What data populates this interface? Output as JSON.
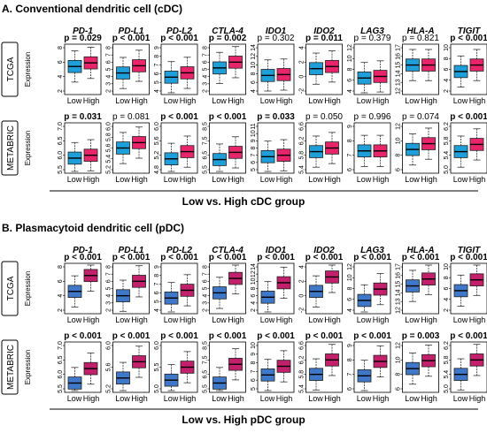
{
  "genes": [
    "PD-1",
    "PD-L1",
    "PD-L2",
    "CTLA-4",
    "IDO1",
    "IDO2",
    "LAG3",
    "HLA-A",
    "TIGIT"
  ],
  "x_categories": [
    "Low",
    "High"
  ],
  "y_label": "Expression",
  "colors": {
    "cdc_low": "#1f9fd9",
    "cdc_high": "#e8246b",
    "pdc_low": "#3f78c9",
    "pdc_high": "#c2206b",
    "cdc_low_alt": "#2a7fd0"
  },
  "panels": [
    {
      "title": "A. Conventional dendritic cell (cDC)",
      "group_caption": "Low vs. High cDC group",
      "scheme": "cdc",
      "rows": [
        {
          "label": "TCGA",
          "pvalues": [
            "p = 0.029",
            "p < 0.001",
            "p < 0.001",
            "p = 0.002",
            "p = 0.302",
            "p = 0.011",
            "p = 0.379",
            "p = 0.821",
            "p < 0.001"
          ],
          "significant": [
            true,
            true,
            true,
            true,
            false,
            true,
            false,
            false,
            true
          ],
          "tick_labels": [
            [
              "2",
              "4",
              "6",
              "8"
            ],
            [
              "2",
              "3",
              "4",
              "5",
              "6",
              "7",
              "8"
            ],
            [
              "4",
              "5",
              "6",
              "7",
              "8",
              "9"
            ],
            [
              "2",
              "3",
              "4",
              "5",
              "6",
              "7",
              "8"
            ],
            [
              "4",
              "6",
              "8",
              "10",
              "12",
              "14"
            ],
            [
              "-2",
              "0",
              "2",
              "4"
            ],
            [
              "4",
              "6",
              "8",
              "10",
              "12"
            ],
            [
              "12",
              "13",
              "14",
              "15",
              "16",
              "17"
            ],
            [
              "2",
              "4",
              "6",
              "8",
              "10"
            ]
          ]
        },
        {
          "label": "METABRIC",
          "pvalues": [
            "p = 0.031",
            "p = 0.081",
            "p < 0.001",
            "p < 0.001",
            "p = 0.033",
            "p = 0.050",
            "p = 0.996",
            "p = 0.074",
            "p < 0.001"
          ],
          "significant": [
            true,
            false,
            true,
            true,
            true,
            false,
            false,
            false,
            true
          ],
          "tick_labels": [
            [
              "5.5",
              "6.0",
              "6.5",
              "7.0"
            ],
            [
              "5.2",
              "5.4",
              "5.6",
              "5.8",
              "6.0"
            ],
            [
              "4.8",
              "5.2",
              "5.6",
              "6.0"
            ],
            [
              "5.5",
              "6.5",
              "7.5",
              "8.5"
            ],
            [
              "5",
              "6",
              "7",
              "8",
              "9",
              "10",
              "11"
            ],
            [
              "5.4",
              "5.8",
              "6.2",
              "6.6"
            ],
            [
              "6",
              "7",
              "8",
              "9"
            ],
            [
              "6",
              "8",
              "10",
              "12"
            ],
            [
              "5.0",
              "5.4",
              "5.8",
              "6.2"
            ]
          ]
        }
      ]
    },
    {
      "title": "B. Plasmacytoid dendritic cell (pDC)",
      "group_caption": "Low vs. High pDC group",
      "scheme": "pdc",
      "rows": [
        {
          "label": "TCGA",
          "pvalues": [
            "p < 0.001",
            "p < 0.001",
            "p < 0.001",
            "p < 0.001",
            "p < 0.001",
            "p < 0.001",
            "p < 0.001",
            "p < 0.001",
            "p < 0.001"
          ],
          "significant": [
            true,
            true,
            true,
            true,
            true,
            true,
            true,
            true,
            true
          ],
          "tick_labels": [
            [
              "2",
              "4",
              "6",
              "8"
            ],
            [
              "2",
              "3",
              "4",
              "5",
              "6",
              "7",
              "8"
            ],
            [
              "4",
              "5",
              "6",
              "7",
              "8",
              "9"
            ],
            [
              "2",
              "3",
              "4",
              "5",
              "6",
              "7",
              "8"
            ],
            [
              "2",
              "4",
              "6",
              "8",
              "10",
              "12",
              "14"
            ],
            [
              "-2",
              "0",
              "2",
              "4"
            ],
            [
              "4",
              "6",
              "8",
              "10",
              "12"
            ],
            [
              "12",
              "13",
              "14",
              "15",
              "16",
              "17"
            ],
            [
              "2",
              "4",
              "6",
              "8",
              "10"
            ]
          ]
        },
        {
          "label": "METABRIC",
          "pvalues": [
            "p < 0.001",
            "p < 0.001",
            "p < 0.001",
            "p < 0.001",
            "p < 0.001",
            "p < 0.001",
            "p < 0.001",
            "p = 0.003",
            "p < 0.001"
          ],
          "significant": [
            true,
            true,
            true,
            true,
            true,
            true,
            true,
            true,
            true
          ],
          "tick_labels": [
            [
              "5.5",
              "6.0",
              "6.5",
              "7.0"
            ],
            [
              "5.2",
              "5.6",
              "6.0"
            ],
            [
              "5.0",
              "5.5",
              "6.0"
            ],
            [
              "5.5",
              "6.5",
              "7.5",
              "8.5"
            ],
            [
              "5",
              "6",
              "7",
              "8",
              "9",
              "10"
            ],
            [
              "5.4",
              "5.8",
              "6.2",
              "6.6"
            ],
            [
              "6",
              "7",
              "8",
              "9"
            ],
            [
              "6",
              "8",
              "10",
              "12"
            ],
            [
              "5.0",
              "5.4",
              "5.8",
              "6.2"
            ]
          ]
        }
      ]
    }
  ],
  "chart_data": [
    {
      "type": "box",
      "title": "A. Conventional dendritic cell (cDC)",
      "dataset": "TCGA",
      "xlabel": "Low vs. High cDC group",
      "ylabel": "Expression",
      "categories": [
        "Low",
        "High"
      ],
      "series": [
        {
          "name": "Low",
          "medians": [
            5.4,
            4.5,
            5.6,
            5.2,
            7.6,
            1.1,
            6.4,
            15.0,
            5.6
          ]
        },
        {
          "name": "High",
          "medians": [
            5.9,
            5.5,
            6.1,
            6.0,
            7.8,
            1.4,
            6.7,
            15.0,
            6.8
          ]
        }
      ]
    },
    {
      "type": "box",
      "title": "A. Conventional dendritic cell (cDC)",
      "dataset": "METABRIC",
      "xlabel": "Low vs. High cDC group",
      "ylabel": "Expression",
      "categories": [
        "Low",
        "High"
      ],
      "series": [
        {
          "name": "Low",
          "medians": [
            5.9,
            5.6,
            5.1,
            6.2,
            6.8,
            5.9,
            7.3,
            8.8,
            5.5
          ]
        },
        {
          "name": "High",
          "medians": [
            6.0,
            5.7,
            5.3,
            6.7,
            7.0,
            6.0,
            7.3,
            9.6,
            5.7
          ]
        }
      ]
    },
    {
      "type": "box",
      "title": "B. Plasmacytoid dendritic cell (pDC)",
      "dataset": "TCGA",
      "xlabel": "Low vs. High pDC group",
      "ylabel": "Expression",
      "categories": [
        "Low",
        "High"
      ],
      "series": [
        {
          "name": "Low",
          "medians": [
            4.6,
            4.0,
            5.4,
            4.4,
            5.6,
            0.6,
            5.8,
            14.8,
            5.6
          ]
        },
        {
          "name": "High",
          "medians": [
            6.8,
            6.0,
            6.3,
            6.4,
            9.6,
            2.6,
            7.9,
            15.6,
            7.6
          ]
        }
      ]
    },
    {
      "type": "box",
      "title": "B. Plasmacytoid dendritic cell (pDC)",
      "dataset": "METABRIC",
      "xlabel": "Low vs. High pDC group",
      "ylabel": "Expression",
      "categories": [
        "Low",
        "High"
      ],
      "series": [
        {
          "name": "Low",
          "medians": [
            5.7,
            5.4,
            5.2,
            5.9,
            6.6,
            5.8,
            6.9,
            8.8,
            5.4
          ]
        },
        {
          "name": "High",
          "medians": [
            6.2,
            5.7,
            5.5,
            7.2,
            7.6,
            6.2,
            7.9,
            9.9,
            5.8
          ]
        }
      ]
    }
  ]
}
